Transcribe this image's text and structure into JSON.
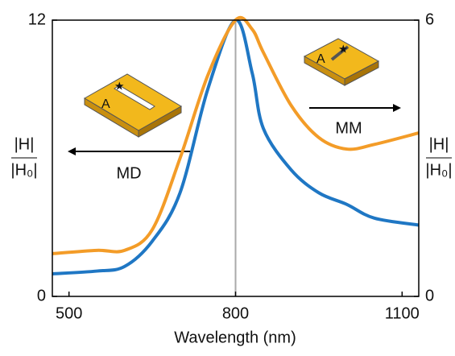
{
  "chart_data": {
    "type": "line",
    "xlabel": "Wavelength (nm)",
    "ylabel": [
      "|H|",
      "|H₀|"
    ],
    "y2label": [
      "|H|",
      "|H₀|"
    ],
    "x": [
      470,
      550,
      600,
      650,
      700,
      750,
      800,
      830,
      850,
      900,
      950,
      1000,
      1050,
      1130
    ],
    "xlim": [
      470,
      1130
    ],
    "xticks": [
      500,
      800,
      1100
    ],
    "ylim": [
      0,
      12
    ],
    "yticks": [
      0,
      12
    ],
    "y2lim": [
      0,
      6
    ],
    "y2ticks": [
      0,
      6
    ],
    "vline": 800,
    "series": [
      {
        "color": "#1f77c4",
        "values": [
          0.98,
          1.1,
          1.3,
          2.4,
          4.5,
          9,
          12,
          9.7,
          7.3,
          5.5,
          4.5,
          4,
          3.4,
          3.1
        ]
      },
      {
        "color": "#f39c28",
        "axis": "y2",
        "values": [
          0.93,
          1.0,
          1.0,
          1.45,
          3.0,
          4.8,
          6,
          5.8,
          5.3,
          4.15,
          3.45,
          3.2,
          3.3,
          3.55
        ]
      }
    ],
    "annotations": [
      "MD",
      "MM",
      "A",
      "A"
    ]
  }
}
